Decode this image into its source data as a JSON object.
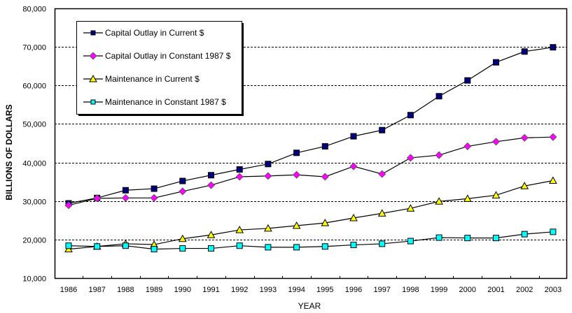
{
  "chart_data": {
    "type": "line",
    "title": "",
    "xlabel": "YEAR",
    "ylabel": "BILLIONS OF DOLLARS",
    "ylim": [
      10000,
      80000
    ],
    "y_ticks": [
      10000,
      20000,
      30000,
      40000,
      50000,
      60000,
      70000,
      80000
    ],
    "y_tick_labels": [
      "10,000",
      "20,000",
      "30,000",
      "40,000",
      "50,000",
      "60,000",
      "70,000",
      "80,000"
    ],
    "grid": "horizontal dashed",
    "legend_position": "top-left",
    "categories": [
      "1986",
      "1987",
      "1988",
      "1989",
      "1990",
      "1991",
      "1992",
      "1993",
      "1994",
      "1995",
      "1996",
      "1997",
      "1998",
      "1999",
      "2000",
      "2001",
      "2002",
      "2003"
    ],
    "series": [
      {
        "name": "Capital Outlay in Current $",
        "marker": "square",
        "color": "#000080",
        "values": [
          29400,
          30800,
          32800,
          33200,
          35200,
          36700,
          38200,
          39600,
          42500,
          44200,
          46800,
          48400,
          52300,
          57200,
          61300,
          66000,
          68800,
          69900
        ]
      },
      {
        "name": "Capital Outlay in Constant 1987 $",
        "marker": "diamond",
        "color": "#ff00ff",
        "values": [
          28900,
          30700,
          30800,
          30800,
          32500,
          34100,
          36300,
          36500,
          36800,
          36300,
          39000,
          37000,
          41200,
          41900,
          44200,
          45400,
          46400,
          46600
        ]
      },
      {
        "name": "Maintenance in Current $",
        "marker": "triangle",
        "color": "#ffff00",
        "values": [
          17500,
          18200,
          18900,
          18700,
          20200,
          21200,
          22500,
          22900,
          23600,
          24300,
          25600,
          26800,
          28100,
          29900,
          30600,
          31500,
          33900,
          35300
        ]
      },
      {
        "name": "Maintenance in Constant 1987 $",
        "marker": "square",
        "color": "#00ffff",
        "values": [
          18400,
          18200,
          18400,
          17500,
          17700,
          17700,
          18400,
          18000,
          18000,
          18200,
          18600,
          18900,
          19600,
          20500,
          20400,
          20400,
          21400,
          22000
        ]
      }
    ]
  }
}
